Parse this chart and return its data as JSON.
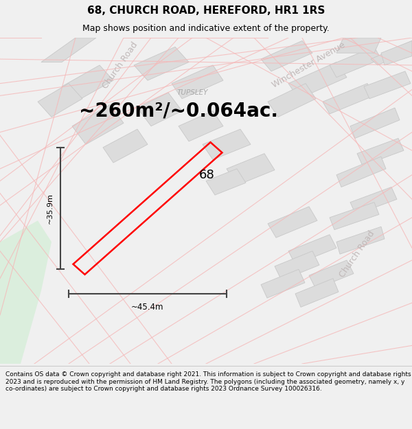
{
  "title": "68, CHURCH ROAD, HEREFORD, HR1 1RS",
  "subtitle": "Map shows position and indicative extent of the property.",
  "area_text": "~260m²/~0.064ac.",
  "label_68": "68",
  "label_tupsley": "TUPSLEY",
  "dim_vertical": "~35.9m",
  "dim_horizontal": "~45.4m",
  "road_label_church1": "Church Road",
  "road_label_church2": "Church Road",
  "road_label_winchester": "Winchester Avenue",
  "footer": "Contains OS data © Crown copyright and database right 2021. This information is subject to Crown copyright and database rights 2023 and is reproduced with the permission of HM Land Registry. The polygons (including the associated geometry, namely x, y co-ordinates) are subject to Crown copyright and database rights 2023 Ordnance Survey 100026316.",
  "bg_color": "#f0f0f0",
  "map_bg": "#ffffff",
  "footer_bg": "#ffffff",
  "plot_color": "#ff0000",
  "building_fill": "#dcdcdc",
  "building_edge": "#c8c8c8",
  "road_line_color": "#f5b8b8",
  "road_line_color2": "#e8c8c8",
  "dim_line_color": "#444444",
  "text_color": "#000000",
  "road_label_color": "#c0b8b8",
  "green_area_color": "#dbeedd",
  "title_fontsize": 11,
  "subtitle_fontsize": 9,
  "area_fontsize": 20,
  "footer_fontsize": 6.5
}
